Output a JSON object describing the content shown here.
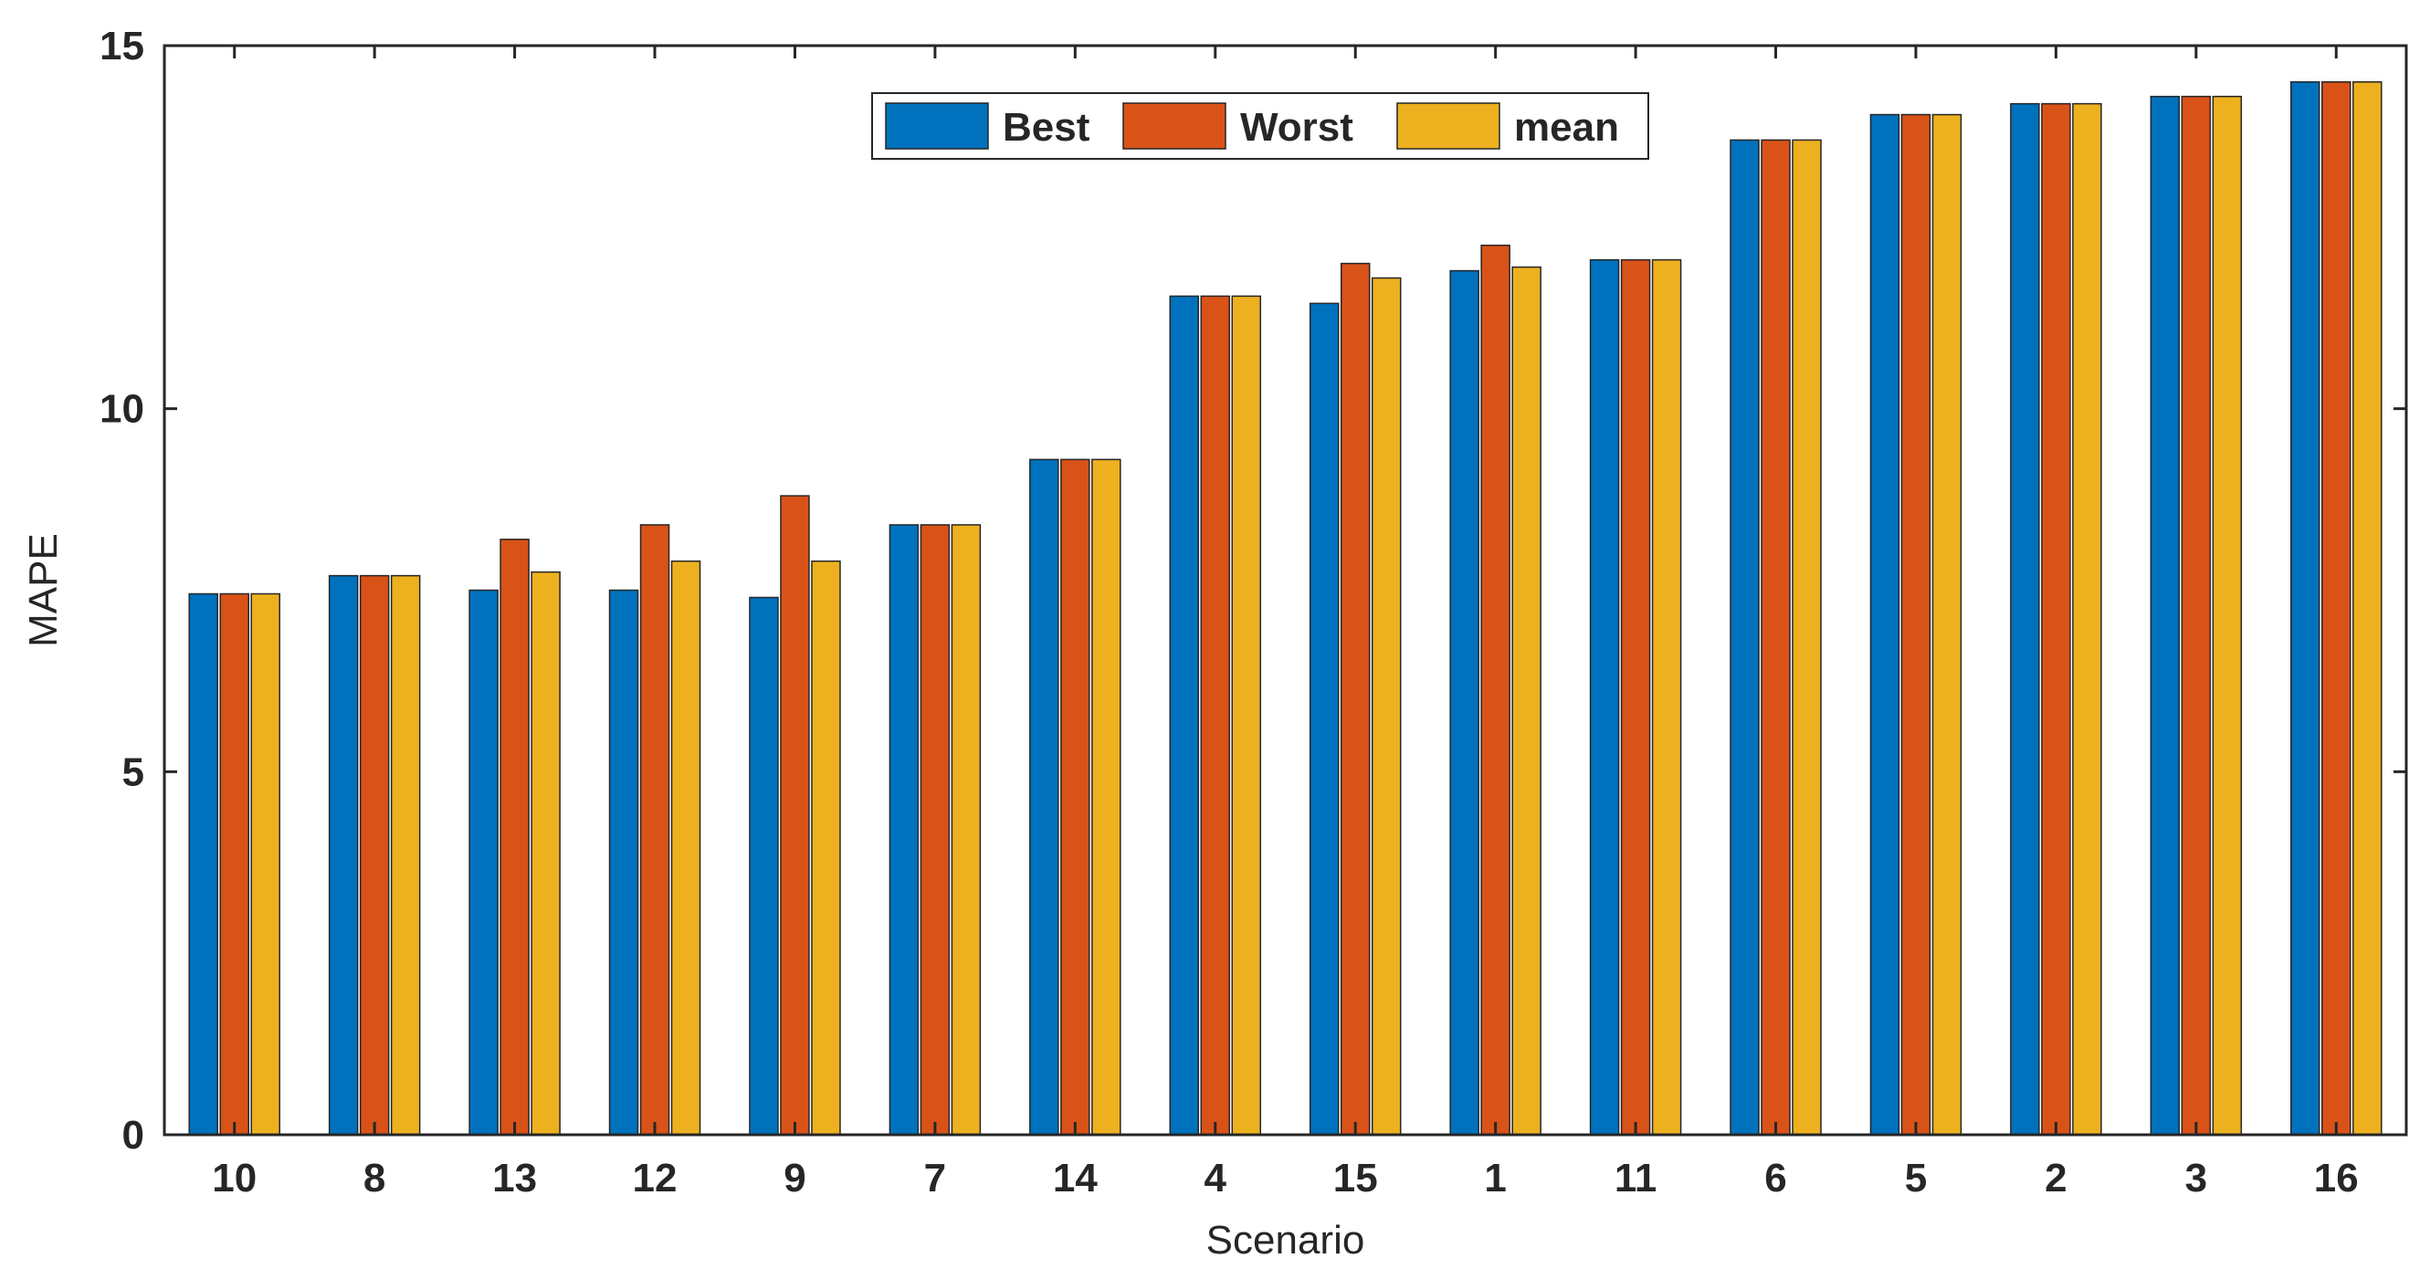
{
  "chart_data": {
    "type": "bar",
    "title": "",
    "xlabel": "Scenario",
    "ylabel": "MAPE",
    "ylim": [
      0,
      15
    ],
    "yticks": [
      "0",
      "5",
      "10",
      "15"
    ],
    "grid": false,
    "legend_position": "top-right",
    "categories": [
      "10",
      "8",
      "13",
      "12",
      "9",
      "7",
      "14",
      "4",
      "15",
      "1",
      "11",
      "6",
      "5",
      "2",
      "3",
      "16"
    ],
    "series": [
      {
        "name": "Best",
        "color": "#0072BD",
        "values": [
          7.45,
          7.7,
          7.5,
          7.5,
          7.4,
          8.4,
          9.3,
          11.55,
          11.45,
          11.9,
          12.05,
          13.7,
          14.05,
          14.2,
          14.3,
          14.5
        ]
      },
      {
        "name": "Worst",
        "color": "#D95319",
        "values": [
          7.45,
          7.7,
          8.2,
          8.4,
          8.8,
          8.4,
          9.3,
          11.55,
          12.0,
          12.25,
          12.05,
          13.7,
          14.05,
          14.2,
          14.3,
          14.5
        ]
      },
      {
        "name": "mean",
        "color": "#EDB120",
        "values": [
          7.45,
          7.7,
          7.75,
          7.9,
          7.9,
          8.4,
          9.3,
          11.55,
          11.8,
          11.95,
          12.05,
          13.7,
          14.05,
          14.2,
          14.3,
          14.5
        ]
      }
    ]
  }
}
